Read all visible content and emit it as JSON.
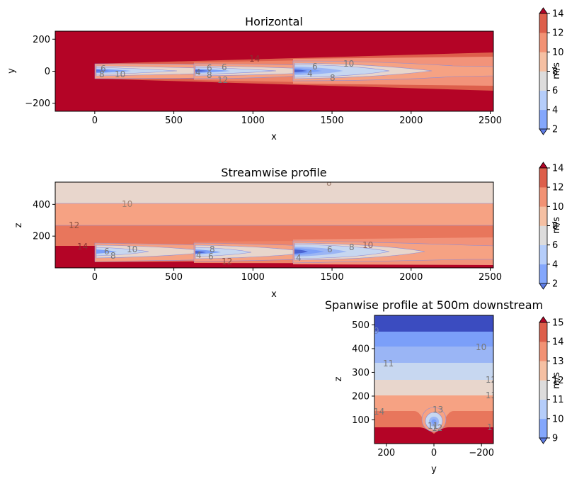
{
  "chart_data": [
    {
      "type": "contourf",
      "title": "Horizontal",
      "xlabel": "x",
      "ylabel": "y",
      "xlim": [
        -250,
        2520
      ],
      "ylim": [
        -250,
        250
      ],
      "xticks": [
        0,
        500,
        1000,
        1500,
        2000,
        2500
      ],
      "yticks": [
        -200,
        0,
        200
      ],
      "turbines_x": [
        0,
        630,
        1260
      ],
      "contour_labels": [
        "6",
        "8",
        "10",
        "6",
        "4",
        "8",
        "6",
        "12",
        "14",
        "6",
        "4",
        "10",
        "8"
      ],
      "colorbar": {
        "label": "m/s",
        "levels": [
          2,
          4,
          6,
          8,
          10,
          12,
          14
        ],
        "tick_labels": [
          "2",
          "4",
          "6",
          "8",
          "10",
          "12",
          "14"
        ]
      }
    },
    {
      "type": "contourf",
      "title": "Streamwise profile",
      "xlabel": "x",
      "ylabel": "z",
      "xlim": [
        -250,
        2520
      ],
      "ylim": [
        0,
        540
      ],
      "xticks": [
        0,
        500,
        1000,
        1500,
        2000,
        2500
      ],
      "yticks": [
        200,
        400
      ],
      "hub_height": 90,
      "contour_labels": [
        "8",
        "10",
        "12",
        "14",
        "6",
        "8",
        "10",
        "4",
        "8",
        "6",
        "12",
        "6",
        "8",
        "10",
        "4"
      ],
      "colorbar": {
        "label": "m/s",
        "levels": [
          2,
          4,
          6,
          8,
          10,
          12,
          14
        ],
        "tick_labels": [
          "2",
          "4",
          "6",
          "8",
          "10",
          "12",
          "14"
        ]
      }
    },
    {
      "type": "contourf",
      "title": "Spanwise profile at 500m downstream",
      "xlabel": "y",
      "ylabel": "z",
      "xlim": [
        250,
        -250
      ],
      "ylim": [
        0,
        540
      ],
      "xticks": [
        200,
        0,
        -200
      ],
      "yticks": [
        100,
        200,
        300,
        400,
        500
      ],
      "contour_labels": [
        "9",
        "10",
        "11",
        "12",
        "13",
        "14",
        "13",
        "11",
        "12",
        "1"
      ],
      "colorbar": {
        "label": "m/s",
        "levels": [
          9,
          10,
          11,
          12,
          13,
          14,
          15
        ],
        "tick_labels": [
          "9",
          "10",
          "11",
          "12",
          "13",
          "14",
          "15"
        ]
      }
    }
  ]
}
